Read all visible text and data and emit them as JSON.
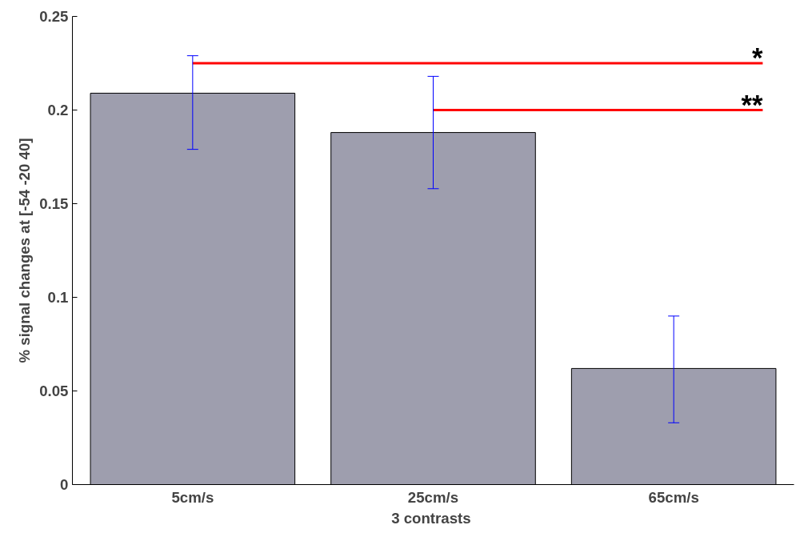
{
  "chart_data": {
    "type": "bar",
    "xlabel": "3  contrasts",
    "ylabel": "% signal changes at [-54 -20 40]",
    "categories": [
      "5cm/s",
      "25cm/s",
      "65cm/s"
    ],
    "values": [
      0.209,
      0.188,
      0.062
    ],
    "errors": [
      [
        0.179,
        0.229
      ],
      [
        0.158,
        0.218
      ],
      [
        0.033,
        0.09
      ]
    ],
    "color": "#9e9eae",
    "ylim": [
      0,
      0.25
    ],
    "yticks": [
      {
        "value": 0,
        "label": "0"
      },
      0.05,
      0.1,
      0.15,
      0.2,
      0.25
    ],
    "grid": false,
    "annotations": [
      {
        "text": "*",
        "x": "5cm/s",
        "y": 0.225
      },
      {
        "text": "**",
        "x": "25cm/s",
        "y": 0.2
      }
    ]
  }
}
